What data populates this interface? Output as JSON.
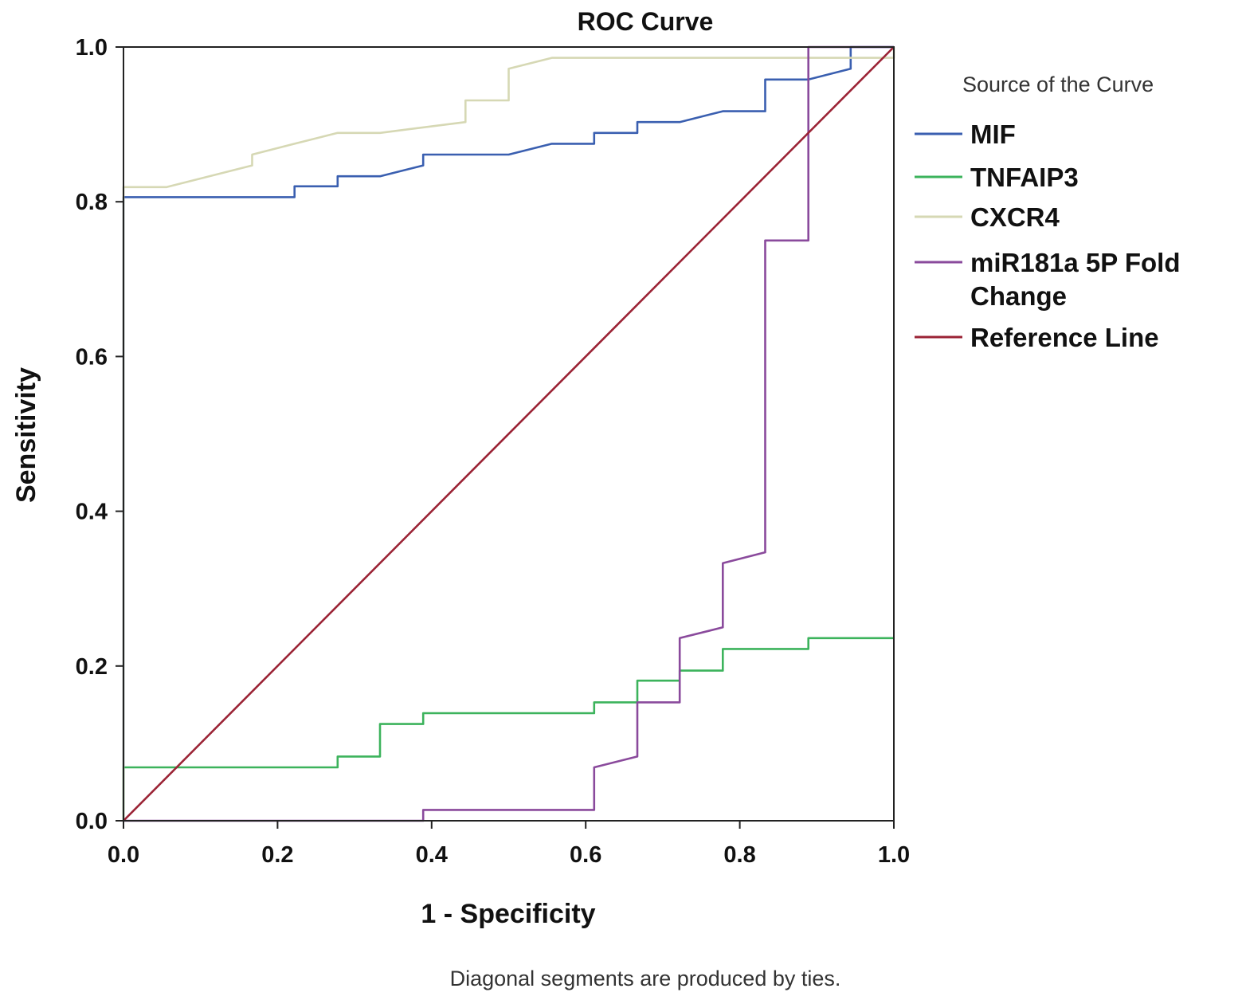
{
  "chart_data": {
    "type": "line",
    "title": "ROC Curve",
    "xlabel": "1 - Specificity",
    "ylabel": "Sensitivity",
    "xlim": [
      0,
      1
    ],
    "ylim": [
      0,
      1
    ],
    "x_ticks": [
      "0.0",
      "0.2",
      "0.4",
      "0.6",
      "0.8",
      "1.0"
    ],
    "y_ticks": [
      "0.0",
      "0.2",
      "0.4",
      "0.6",
      "0.8",
      "1.0"
    ],
    "grid": false,
    "legend_title": "Source of the Curve",
    "legend_position": "right",
    "footnote": "Diagonal segments are produced by ties.",
    "series": [
      {
        "name": "MIF",
        "color": "#3a5fb0",
        "points": [
          [
            0,
            0
          ],
          [
            0,
            0.806
          ],
          [
            0.222,
            0.806
          ],
          [
            0.222,
            0.82
          ],
          [
            0.278,
            0.82
          ],
          [
            0.278,
            0.833
          ],
          [
            0.333,
            0.833
          ],
          [
            0.389,
            0.847
          ],
          [
            0.389,
            0.861
          ],
          [
            0.5,
            0.861
          ],
          [
            0.556,
            0.875
          ],
          [
            0.611,
            0.875
          ],
          [
            0.611,
            0.889
          ],
          [
            0.667,
            0.889
          ],
          [
            0.667,
            0.903
          ],
          [
            0.722,
            0.903
          ],
          [
            0.778,
            0.917
          ],
          [
            0.833,
            0.917
          ],
          [
            0.833,
            0.958
          ],
          [
            0.889,
            0.958
          ],
          [
            0.944,
            0.972
          ],
          [
            0.944,
            1.0
          ],
          [
            1.0,
            1.0
          ]
        ]
      },
      {
        "name": "TNFAIP3",
        "color": "#3cb35c",
        "points": [
          [
            0,
            0
          ],
          [
            0,
            0.069
          ],
          [
            0.278,
            0.069
          ],
          [
            0.278,
            0.083
          ],
          [
            0.333,
            0.083
          ],
          [
            0.333,
            0.125
          ],
          [
            0.389,
            0.125
          ],
          [
            0.389,
            0.139
          ],
          [
            0.611,
            0.139
          ],
          [
            0.611,
            0.153
          ],
          [
            0.667,
            0.153
          ],
          [
            0.667,
            0.181
          ],
          [
            0.722,
            0.181
          ],
          [
            0.722,
            0.194
          ],
          [
            0.778,
            0.194
          ],
          [
            0.778,
            0.222
          ],
          [
            0.889,
            0.222
          ],
          [
            0.889,
            0.236
          ],
          [
            1.0,
            0.236
          ]
        ]
      },
      {
        "name": "CXCR4",
        "color": "#d6d8b4",
        "points": [
          [
            0,
            0
          ],
          [
            0,
            0.819
          ],
          [
            0.056,
            0.819
          ],
          [
            0.167,
            0.847
          ],
          [
            0.167,
            0.861
          ],
          [
            0.222,
            0.875
          ],
          [
            0.278,
            0.889
          ],
          [
            0.333,
            0.889
          ],
          [
            0.444,
            0.903
          ],
          [
            0.444,
            0.931
          ],
          [
            0.5,
            0.931
          ],
          [
            0.5,
            0.972
          ],
          [
            0.556,
            0.986
          ],
          [
            1.0,
            0.986
          ],
          [
            1.0,
            1.0
          ]
        ]
      },
      {
        "name": "miR181a 5P Fold Change",
        "color": "#8a4a9c",
        "points": [
          [
            0,
            0
          ],
          [
            0.389,
            0
          ],
          [
            0.389,
            0.014
          ],
          [
            0.611,
            0.014
          ],
          [
            0.611,
            0.069
          ],
          [
            0.667,
            0.083
          ],
          [
            0.667,
            0.153
          ],
          [
            0.722,
            0.153
          ],
          [
            0.722,
            0.236
          ],
          [
            0.778,
            0.25
          ],
          [
            0.778,
            0.333
          ],
          [
            0.833,
            0.347
          ],
          [
            0.833,
            0.75
          ],
          [
            0.889,
            0.75
          ],
          [
            0.889,
            1.0
          ],
          [
            1.0,
            1.0
          ]
        ]
      },
      {
        "name": "Reference Line",
        "color": "#9b2335",
        "points": [
          [
            0,
            0
          ],
          [
            1,
            1
          ]
        ]
      }
    ]
  }
}
